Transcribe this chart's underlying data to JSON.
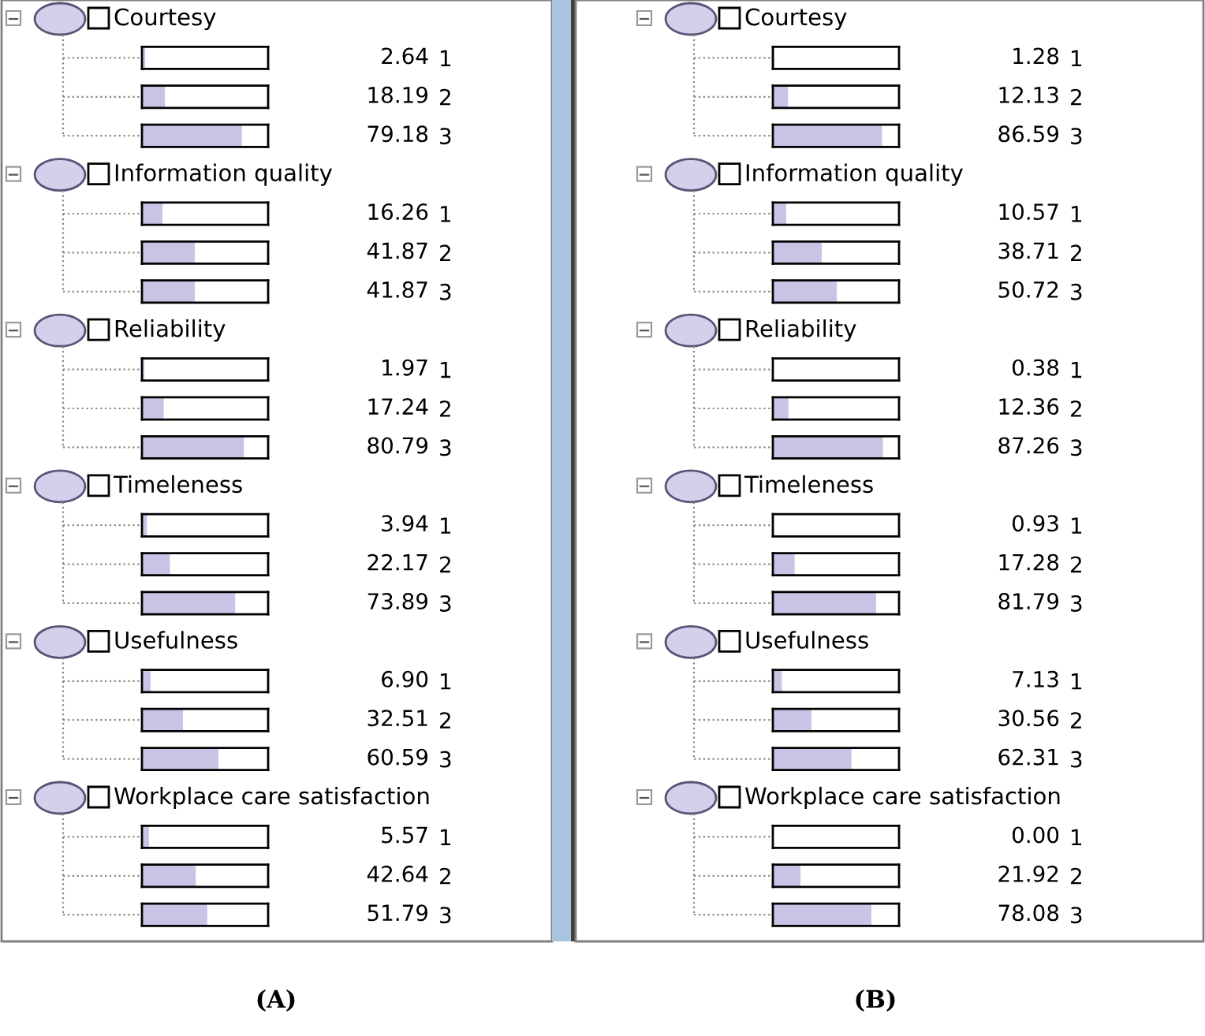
{
  "chart_data": [
    {
      "type": "bar",
      "orientation": "horizontal",
      "xlabel": "(A)",
      "color": "#c9c4e6",
      "xlim": [
        0,
        100
      ],
      "annotations": [
        "Courtesy",
        "Information quality",
        "Reliability",
        "Timeleness",
        "Usefulness",
        "Workplace care satisfaction"
      ],
      "categories": [
        null,
        "1",
        "2",
        "3",
        null,
        "1",
        "2",
        "3",
        null,
        "1",
        "2",
        "3",
        null,
        "1",
        "2",
        "3",
        null,
        "1",
        "2",
        "3",
        null,
        "1",
        "2",
        "3"
      ],
      "values": [
        null,
        2.64,
        18.19,
        79.18,
        null,
        16.26,
        41.87,
        41.87,
        null,
        1.97,
        17.24,
        80.79,
        null,
        3.94,
        22.17,
        73.89,
        null,
        6.9,
        32.51,
        60.59,
        null,
        5.57,
        42.64,
        51.79
      ],
      "value_labels": [
        null,
        "2.64",
        "18.19",
        "79.18",
        null,
        "16.26",
        "41.87",
        "41.87",
        null,
        "1.97",
        "17.24",
        "80.79",
        null,
        "3.94",
        "22.17",
        "73.89",
        null,
        "6.90",
        "32.51",
        "60.59",
        null,
        "5.57",
        "42.64",
        "51.79"
      ]
    },
    {
      "type": "bar",
      "orientation": "horizontal",
      "xlabel": "(B)",
      "color": "#c9c4e6",
      "xlim": [
        0,
        100
      ],
      "annotations": [
        "Courtesy",
        "Information quality",
        "Reliability",
        "Timeleness",
        "Usefulness",
        "Workplace care satisfaction"
      ],
      "categories": [
        null,
        "1",
        "2",
        "3",
        null,
        "1",
        "2",
        "3",
        null,
        "1",
        "2",
        "3",
        null,
        "1",
        "2",
        "3",
        null,
        "1",
        "2",
        "3",
        null,
        "1",
        "2",
        "3"
      ],
      "values": [
        null,
        1.28,
        12.13,
        86.59,
        null,
        10.57,
        38.71,
        50.72,
        null,
        0.38,
        12.36,
        87.26,
        null,
        0.93,
        17.28,
        81.79,
        null,
        7.13,
        30.56,
        62.31,
        null,
        0.0,
        21.92,
        78.08
      ],
      "value_labels": [
        null,
        "1.28",
        "12.13",
        "86.59",
        null,
        "10.57",
        "38.71",
        "50.72",
        null,
        "0.38",
        "12.36",
        "87.26",
        null,
        "0.93",
        "17.28",
        "81.79",
        null,
        "7.13",
        "30.56",
        "62.31",
        null,
        "0.00",
        "21.92",
        "78.08"
      ]
    }
  ]
}
